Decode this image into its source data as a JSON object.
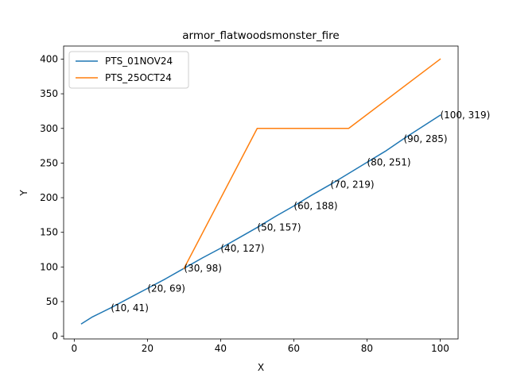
{
  "chart_data": {
    "type": "line",
    "title": "armor_flatwoodsmonster_fire",
    "xlabel": "X",
    "ylabel": "Y",
    "xlim": [
      -2.9,
      104.9
    ],
    "ylim": [
      -3.9,
      418.9
    ],
    "xticks": [
      0,
      20,
      40,
      60,
      80,
      100
    ],
    "yticks": [
      0,
      50,
      100,
      150,
      200,
      250,
      300,
      350,
      400
    ],
    "grid": false,
    "legend_position": "top-left",
    "series": [
      {
        "name": "PTS_01NOV24",
        "color": "#1f77b4",
        "x": [
          2,
          5,
          10,
          15,
          20,
          25,
          30,
          35,
          40,
          45,
          50,
          55,
          60,
          65,
          70,
          75,
          80,
          85,
          90,
          95,
          100
        ],
        "y": [
          18,
          28,
          41,
          55,
          69,
          83,
          98,
          113,
          127,
          142,
          157,
          173,
          188,
          204,
          219,
          235,
          251,
          267,
          285,
          302,
          319
        ]
      },
      {
        "name": "PTS_25OCT24",
        "color": "#ff7f0e",
        "x": [
          30,
          50,
          75,
          100
        ],
        "y": [
          98,
          300,
          300,
          400
        ]
      }
    ],
    "annotations": [
      {
        "x": 10,
        "y": 41,
        "text": "(10, 41)"
      },
      {
        "x": 20,
        "y": 69,
        "text": "(20, 69)"
      },
      {
        "x": 30,
        "y": 98,
        "text": "(30, 98)"
      },
      {
        "x": 40,
        "y": 127,
        "text": "(40, 127)"
      },
      {
        "x": 50,
        "y": 157,
        "text": "(50, 157)"
      },
      {
        "x": 60,
        "y": 188,
        "text": "(60, 188)"
      },
      {
        "x": 70,
        "y": 219,
        "text": "(70, 219)"
      },
      {
        "x": 80,
        "y": 251,
        "text": "(80, 251)"
      },
      {
        "x": 90,
        "y": 285,
        "text": "(90, 285)"
      },
      {
        "x": 100,
        "y": 319,
        "text": "(100, 319)"
      }
    ]
  }
}
